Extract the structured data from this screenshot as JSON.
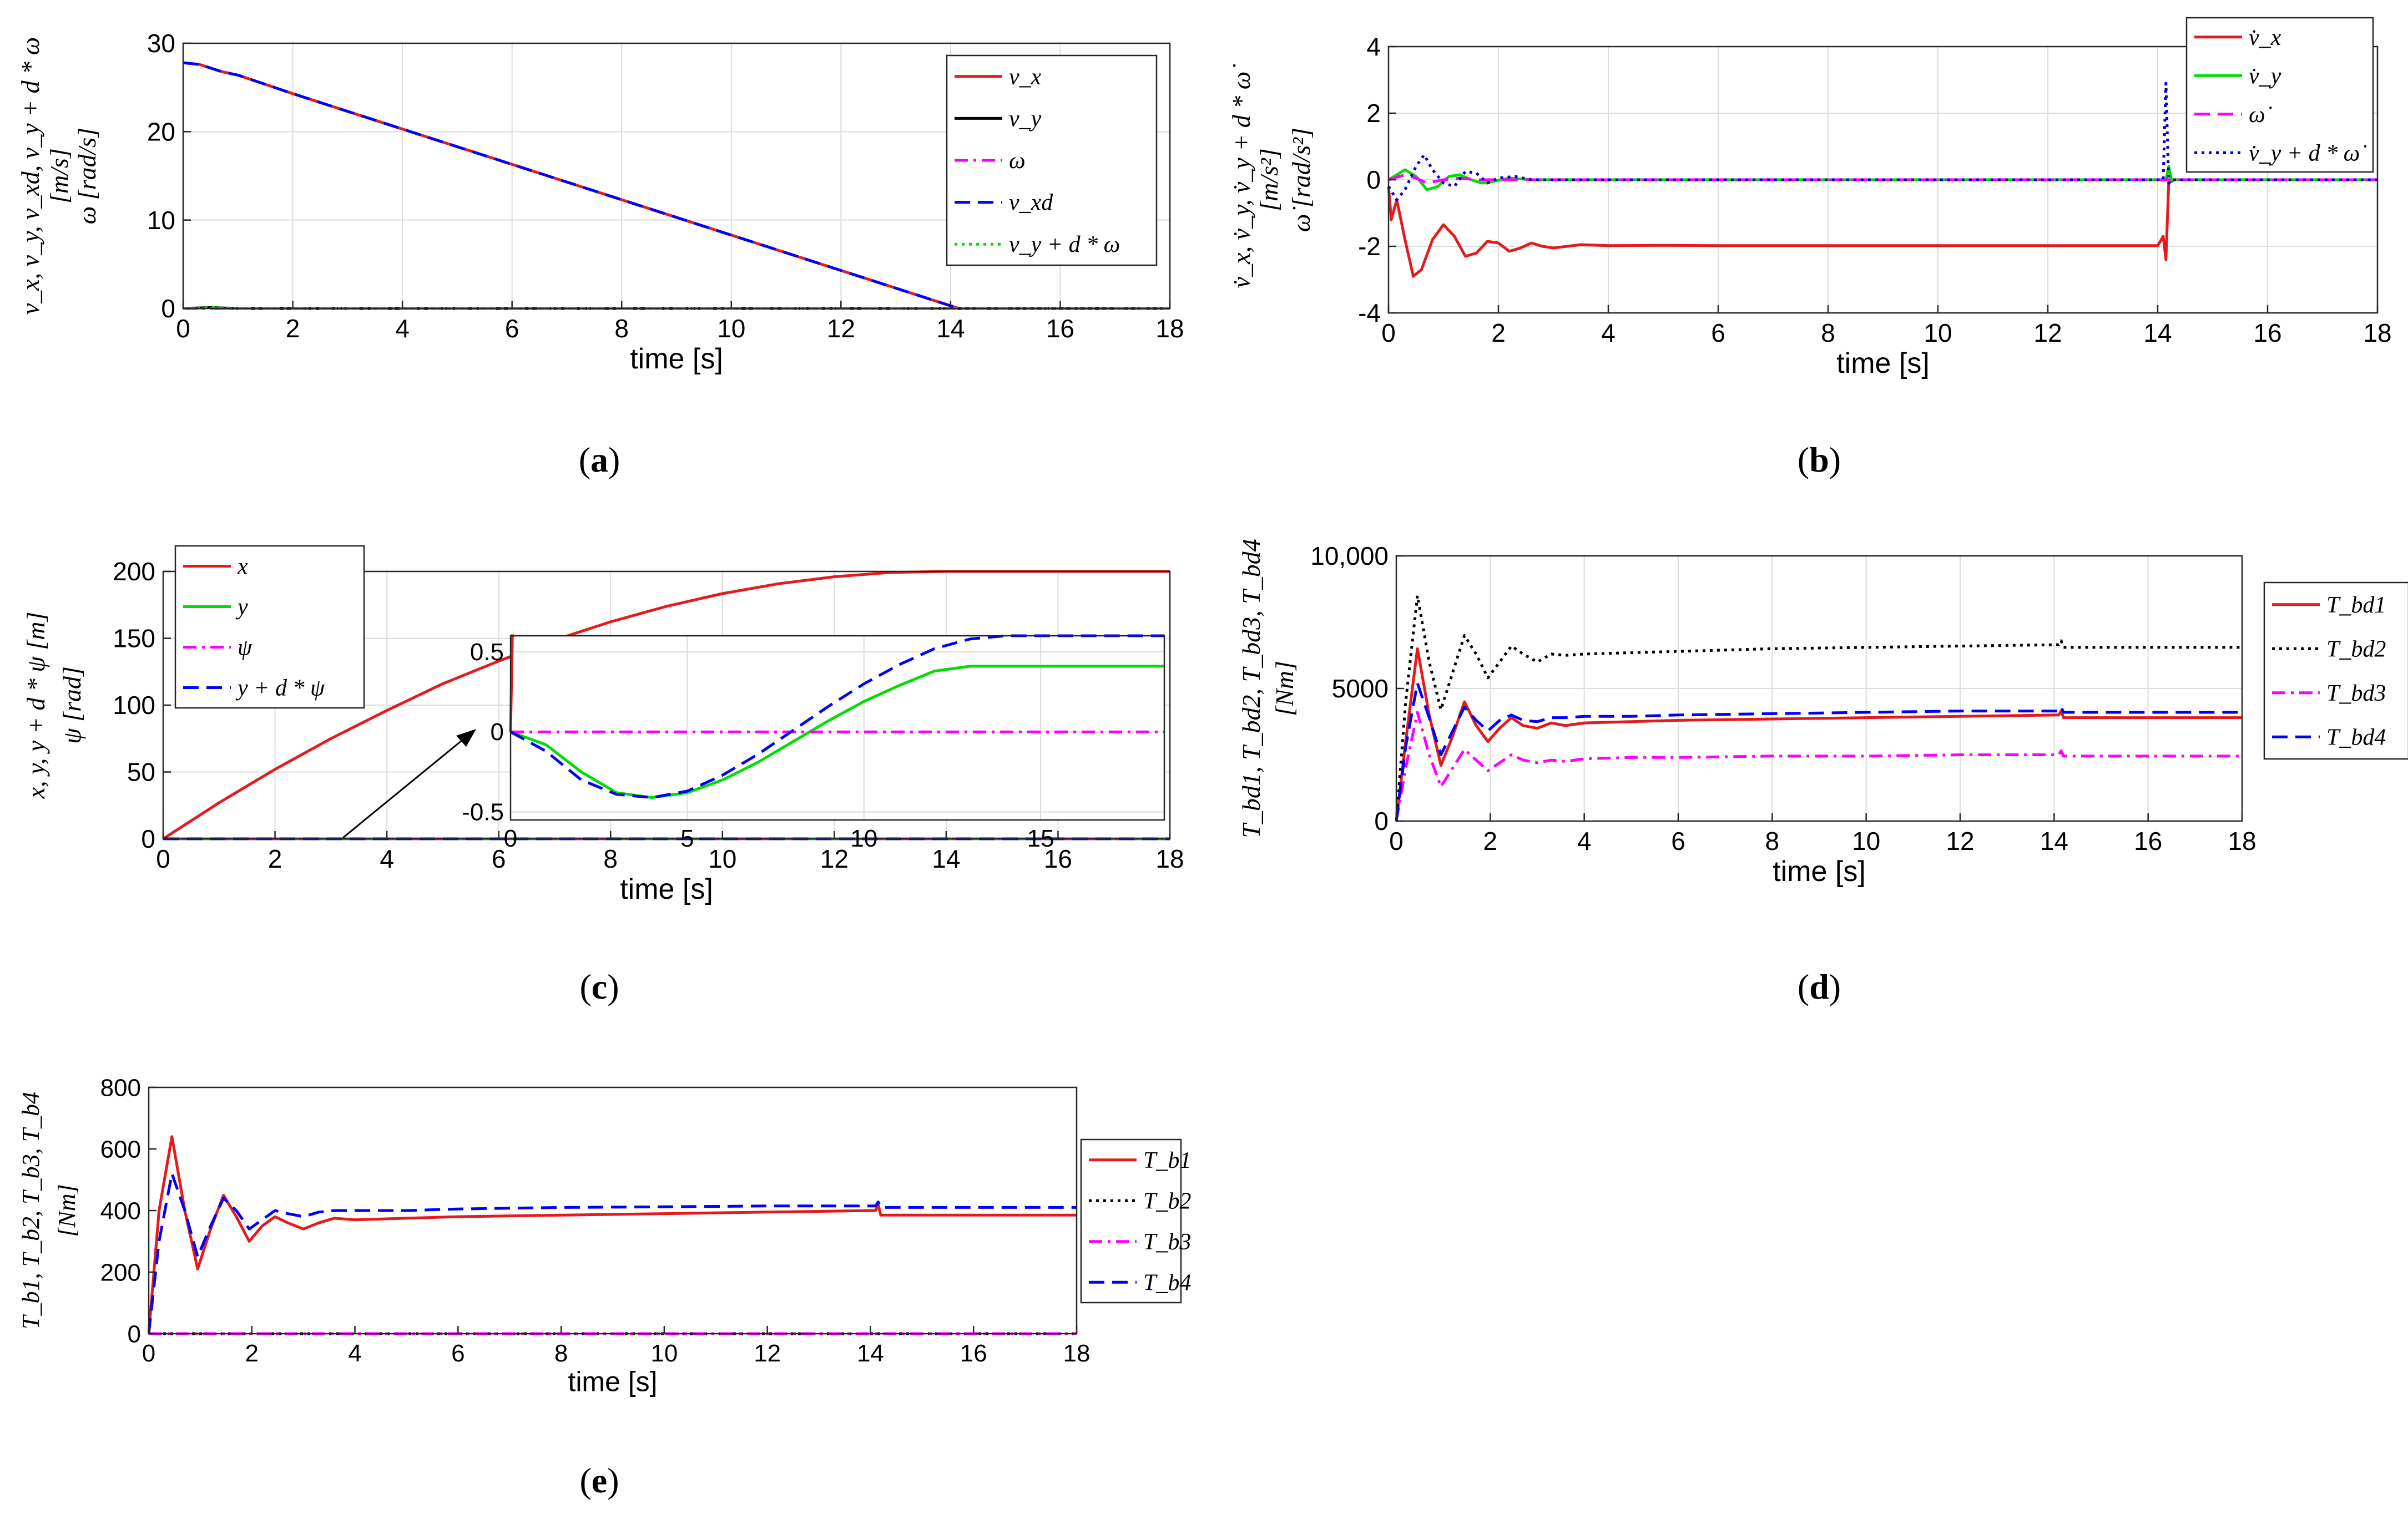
{
  "chart_data": [
    {
      "id": "a",
      "type": "line",
      "caption": "(a)",
      "caption_letter": "a",
      "xlabel": "time [s]",
      "ylabel": [
        "v_x, v_y, v_xd, v_y + d * ω",
        "[m/s]",
        "ω [rad/s]"
      ],
      "xlim": [
        0,
        18
      ],
      "ylim": [
        0,
        30
      ],
      "xticks": [
        0,
        2,
        4,
        6,
        8,
        10,
        12,
        14,
        16,
        18
      ],
      "yticks": [
        0,
        10,
        20,
        30
      ],
      "grid": true,
      "legend": "top-right",
      "series": [
        {
          "name": "v_x",
          "color": "#e41a1c",
          "dash": "solid",
          "x": [
            0,
            0.3,
            0.5,
            0.7,
            1,
            2,
            4,
            6,
            8,
            10,
            12,
            14,
            14.15,
            18
          ],
          "y": [
            27.8,
            27.6,
            27.2,
            26.8,
            26.4,
            24.3,
            20.3,
            16.3,
            12.3,
            8.3,
            4.3,
            0.3,
            0,
            0
          ]
        },
        {
          "name": "v_y",
          "color": "#000000",
          "dash": "solid",
          "x": [
            0,
            0.5,
            1,
            2,
            18
          ],
          "y": [
            0,
            0.1,
            0,
            0,
            0
          ]
        },
        {
          "name": "ω",
          "color": "#ff00ff",
          "dash": "dashdot",
          "x": [
            0,
            18
          ],
          "y": [
            0,
            0
          ]
        },
        {
          "name": "v_xd",
          "color": "#0000ff",
          "dash": "dash",
          "x": [
            0,
            0.3,
            0.5,
            0.7,
            1,
            2,
            4,
            6,
            8,
            10,
            12,
            14,
            14.15,
            18
          ],
          "y": [
            27.8,
            27.6,
            27.2,
            26.8,
            26.4,
            24.3,
            20.3,
            16.3,
            12.3,
            8.3,
            4.3,
            0.3,
            0,
            0
          ]
        },
        {
          "name": "v_y + d * ω",
          "color": "#00dd00",
          "dash": "dot",
          "x": [
            0,
            0.5,
            1,
            18
          ],
          "y": [
            0,
            0.15,
            0,
            0
          ]
        }
      ]
    },
    {
      "id": "b",
      "type": "line",
      "caption": "(b)",
      "caption_letter": "b",
      "xlabel": "time [s]",
      "ylabel": [
        "v̇_x, v̇_y, v̇_y + d * ω̇",
        "[m/s²]",
        "ω̇ [rad/s²]"
      ],
      "xlim": [
        0,
        18
      ],
      "ylim": [
        -4,
        4
      ],
      "xticks": [
        0,
        2,
        4,
        6,
        8,
        10,
        12,
        14,
        16,
        18
      ],
      "yticks": [
        -4,
        -2,
        0,
        2,
        4
      ],
      "grid": true,
      "legend": "top-right",
      "series": [
        {
          "name": "v̇_x",
          "color": "#e41a1c",
          "dash": "solid",
          "x": [
            0,
            0.05,
            0.15,
            0.3,
            0.45,
            0.6,
            0.8,
            1.0,
            1.2,
            1.4,
            1.6,
            1.8,
            2.0,
            2.2,
            2.4,
            2.6,
            2.8,
            3.0,
            3.5,
            4,
            5,
            6,
            8,
            10,
            12,
            14,
            14.1,
            14.15,
            14.2,
            14.3,
            18
          ],
          "y": [
            -0.2,
            -1.2,
            -0.6,
            -1.8,
            -2.9,
            -2.7,
            -1.8,
            -1.35,
            -1.7,
            -2.3,
            -2.2,
            -1.85,
            -1.9,
            -2.15,
            -2.05,
            -1.9,
            -2.0,
            -2.05,
            -1.95,
            -1.98,
            -1.97,
            -1.98,
            -1.98,
            -1.98,
            -1.98,
            -1.98,
            -1.7,
            -2.4,
            -0.1,
            0,
            0
          ]
        },
        {
          "name": "v̇_y",
          "color": "#00dd00",
          "dash": "solid",
          "x": [
            0,
            0.3,
            0.5,
            0.7,
            0.9,
            1.1,
            1.3,
            1.5,
            1.7,
            1.9,
            2.2,
            2.6,
            3,
            14.15,
            14.2,
            14.25,
            18
          ],
          "y": [
            0,
            0.3,
            0.1,
            -0.3,
            -0.2,
            0.1,
            0.15,
            0.0,
            -0.1,
            -0.05,
            0.05,
            0,
            0,
            0,
            0.4,
            0,
            0
          ]
        },
        {
          "name": "ω̇",
          "color": "#ff00ff",
          "dash": "dash",
          "x": [
            0,
            0.3,
            0.5,
            0.7,
            1.0,
            1.3,
            1.6,
            2.0,
            18
          ],
          "y": [
            0,
            0.15,
            0.05,
            -0.1,
            0.0,
            0.05,
            0.0,
            0.0,
            0.0
          ]
        },
        {
          "name": "v̇_y + d * ω̇",
          "color": "#0000cc",
          "dash": "dot",
          "x": [
            0,
            0.15,
            0.3,
            0.5,
            0.65,
            0.8,
            1.0,
            1.2,
            1.4,
            1.6,
            1.8,
            2.0,
            2.3,
            2.6,
            3,
            14.1,
            14.15,
            14.2,
            14.25,
            18
          ],
          "y": [
            -0.2,
            -0.6,
            -0.3,
            0.4,
            0.75,
            0.3,
            -0.1,
            -0.2,
            0.25,
            0.2,
            -0.1,
            0.05,
            0.1,
            0,
            0,
            0,
            2.9,
            -0.1,
            0,
            0
          ]
        }
      ]
    },
    {
      "id": "c",
      "type": "line",
      "caption": "(c)",
      "caption_letter": "c",
      "xlabel": "time [s]",
      "ylabel": [
        "x, y, y + d * ψ [m]",
        "ψ [rad]"
      ],
      "xlim": [
        0,
        18
      ],
      "ylim": [
        0,
        200
      ],
      "xticks": [
        0,
        2,
        4,
        6,
        8,
        10,
        12,
        14,
        16,
        18
      ],
      "yticks": [
        0,
        50,
        100,
        150,
        200
      ],
      "grid": true,
      "legend": "top-left",
      "series": [
        {
          "name": "x",
          "color": "#e41a1c",
          "dash": "solid",
          "x": [
            0,
            1,
            2,
            3,
            4,
            5,
            6,
            7,
            8,
            9,
            10,
            11,
            12,
            13,
            14,
            18
          ],
          "y": [
            0,
            27,
            52,
            75,
            96,
            116,
            133,
            148.7,
            162.3,
            173.9,
            183.4,
            190.8,
            196,
            199.2,
            200,
            200
          ]
        },
        {
          "name": "y",
          "color": "#00dd00",
          "dash": "solid",
          "x": [
            0,
            18
          ],
          "y": [
            0,
            0
          ]
        },
        {
          "name": "ψ",
          "color": "#ff00ff",
          "dash": "dashdot",
          "x": [
            0,
            18
          ],
          "y": [
            0,
            0
          ]
        },
        {
          "name": "y + d * ψ",
          "color": "#0000ff",
          "dash": "dash",
          "x": [
            0,
            18
          ],
          "y": [
            0,
            0
          ]
        }
      ],
      "inset": {
        "xlim": [
          0,
          18.5
        ],
        "ylim": [
          -0.55,
          0.6
        ],
        "xticks": [
          0,
          5,
          10,
          15
        ],
        "yticks": [
          -0.5,
          0,
          0.5
        ],
        "series": [
          {
            "name": "x",
            "color": "#e41a1c",
            "dash": "solid",
            "x": [
              0,
              0.05,
              0.1
            ],
            "y": [
              0,
              0.6,
              0.6
            ]
          },
          {
            "name": "y",
            "color": "#00dd00",
            "dash": "solid",
            "x": [
              0,
              1,
              2,
              3,
              4,
              5,
              6,
              7,
              8,
              9,
              10,
              11,
              12,
              13,
              14,
              18.5
            ],
            "y": [
              0,
              -0.08,
              -0.25,
              -0.38,
              -0.41,
              -0.38,
              -0.3,
              -0.19,
              -0.06,
              0.07,
              0.19,
              0.29,
              0.38,
              0.41,
              0.41,
              0.41
            ]
          },
          {
            "name": "ψ",
            "color": "#ff00ff",
            "dash": "dashdot",
            "x": [
              0,
              18.5
            ],
            "y": [
              0,
              0
            ]
          },
          {
            "name": "y + d * ψ",
            "color": "#0000ff",
            "dash": "dash",
            "x": [
              0,
              1,
              2,
              3,
              4,
              5,
              6,
              7,
              8,
              9,
              10,
              11,
              12,
              13,
              14,
              15,
              18.5
            ],
            "y": [
              0,
              -0.12,
              -0.3,
              -0.39,
              -0.41,
              -0.37,
              -0.27,
              -0.14,
              0.01,
              0.16,
              0.3,
              0.42,
              0.52,
              0.58,
              0.6,
              0.6,
              0.6
            ]
          }
        ]
      }
    },
    {
      "id": "d",
      "type": "line",
      "caption": "(d)",
      "caption_letter": "d",
      "xlabel": "time [s]",
      "ylabel": [
        "T_bd1, T_bd2, T_bd3, T_bd4",
        "[Nm]"
      ],
      "xlim": [
        0,
        18
      ],
      "ylim": [
        0,
        10000
      ],
      "xticks": [
        0,
        2,
        4,
        6,
        8,
        10,
        12,
        14,
        16,
        18
      ],
      "yticks": [
        0,
        5000,
        10000
      ],
      "ytick_labels": [
        "0",
        "5000",
        "10,000"
      ],
      "grid": true,
      "legend": "outside-right",
      "series": [
        {
          "name": "T_bd1",
          "color": "#e41a1c",
          "dash": "solid",
          "x": [
            0,
            0.2,
            0.45,
            0.7,
            0.95,
            1.2,
            1.45,
            1.7,
            1.95,
            2.2,
            2.45,
            2.7,
            3.0,
            3.3,
            3.6,
            4,
            5,
            6,
            8,
            10,
            12,
            14.1,
            14.15,
            14.2,
            18
          ],
          "y": [
            0,
            3000,
            6500,
            4000,
            2100,
            3200,
            4500,
            3600,
            3000,
            3500,
            3900,
            3600,
            3500,
            3700,
            3600,
            3700,
            3750,
            3800,
            3850,
            3900,
            3950,
            4000,
            4150,
            3900,
            3900
          ]
        },
        {
          "name": "T_bd2",
          "color": "#000000",
          "dash": "dot",
          "x": [
            0,
            0.2,
            0.45,
            0.7,
            0.95,
            1.2,
            1.45,
            1.7,
            1.95,
            2.2,
            2.45,
            2.7,
            3.0,
            3.3,
            3.6,
            4,
            5,
            6,
            8,
            10,
            12,
            14.1,
            14.15,
            14.2,
            18
          ],
          "y": [
            0,
            4500,
            8500,
            6000,
            4200,
            5600,
            7000,
            6300,
            5400,
            6000,
            6600,
            6300,
            6000,
            6300,
            6250,
            6300,
            6350,
            6400,
            6500,
            6550,
            6600,
            6650,
            6800,
            6550,
            6550
          ]
        },
        {
          "name": "T_bd3",
          "color": "#ff00ff",
          "dash": "dashdot",
          "x": [
            0,
            0.2,
            0.45,
            0.7,
            0.95,
            1.2,
            1.45,
            1.7,
            1.95,
            2.2,
            2.45,
            2.7,
            3.0,
            3.3,
            3.6,
            4,
            5,
            6,
            8,
            10,
            12,
            14.1,
            14.15,
            14.2,
            18
          ],
          "y": [
            0,
            2000,
            4100,
            2500,
            1300,
            2000,
            2700,
            2300,
            1900,
            2200,
            2500,
            2300,
            2200,
            2300,
            2250,
            2350,
            2400,
            2400,
            2450,
            2450,
            2500,
            2500,
            2650,
            2450,
            2450
          ]
        },
        {
          "name": "T_bd4",
          "color": "#0000ff",
          "dash": "dash",
          "x": [
            0,
            0.2,
            0.45,
            0.7,
            0.95,
            1.2,
            1.45,
            1.7,
            1.95,
            2.2,
            2.45,
            2.7,
            3.0,
            3.3,
            3.6,
            4,
            5,
            6,
            8,
            10,
            12,
            14.1,
            14.15,
            14.2,
            18
          ],
          "y": [
            0,
            2800,
            5200,
            3900,
            2500,
            3400,
            4300,
            3800,
            3400,
            3800,
            4000,
            3800,
            3750,
            3900,
            3900,
            3950,
            3950,
            4000,
            4050,
            4100,
            4150,
            4150,
            4300,
            4100,
            4100
          ]
        }
      ]
    },
    {
      "id": "e",
      "type": "line",
      "caption": "(e)",
      "caption_letter": "e",
      "xlabel": "time [s]",
      "ylabel": [
        "T_b1, T_b2, T_b3, T_b4",
        "[Nm]"
      ],
      "xlim": [
        0,
        18
      ],
      "ylim": [
        0,
        800
      ],
      "xticks": [
        0,
        2,
        4,
        6,
        8,
        10,
        12,
        14,
        16,
        18
      ],
      "yticks": [
        0,
        200,
        400,
        600,
        800
      ],
      "grid": false,
      "legend": "outside-right",
      "series": [
        {
          "name": "T_b1",
          "color": "#e41a1c",
          "dash": "solid",
          "x": [
            0,
            0.2,
            0.45,
            0.7,
            0.95,
            1.2,
            1.45,
            1.7,
            1.95,
            2.2,
            2.45,
            2.7,
            3.0,
            3.3,
            3.6,
            4,
            5,
            6,
            8,
            10,
            12,
            14.1,
            14.15,
            14.2,
            18
          ],
          "y": [
            0,
            400,
            640,
            400,
            210,
            340,
            450,
            380,
            300,
            350,
            380,
            360,
            340,
            360,
            375,
            370,
            375,
            380,
            385,
            390,
            395,
            400,
            420,
            385,
            385
          ]
        },
        {
          "name": "T_b2",
          "color": "#000000",
          "dash": "dot",
          "x": [
            0,
            18
          ],
          "y": [
            0,
            0
          ]
        },
        {
          "name": "T_b3",
          "color": "#ff00ff",
          "dash": "dashdot",
          "x": [
            0,
            18
          ],
          "y": [
            0,
            0
          ]
        },
        {
          "name": "T_b4",
          "color": "#0000ff",
          "dash": "dash",
          "x": [
            0,
            0.2,
            0.45,
            0.7,
            0.95,
            1.2,
            1.45,
            1.7,
            1.95,
            2.2,
            2.45,
            2.7,
            3.0,
            3.3,
            3.6,
            4,
            5,
            6,
            8,
            10,
            12,
            14.1,
            14.15,
            14.2,
            18
          ],
          "y": [
            0,
            300,
            520,
            400,
            250,
            350,
            440,
            400,
            340,
            370,
            400,
            390,
            380,
            395,
            400,
            400,
            400,
            405,
            410,
            412,
            415,
            415,
            428,
            410,
            410
          ]
        }
      ]
    }
  ]
}
